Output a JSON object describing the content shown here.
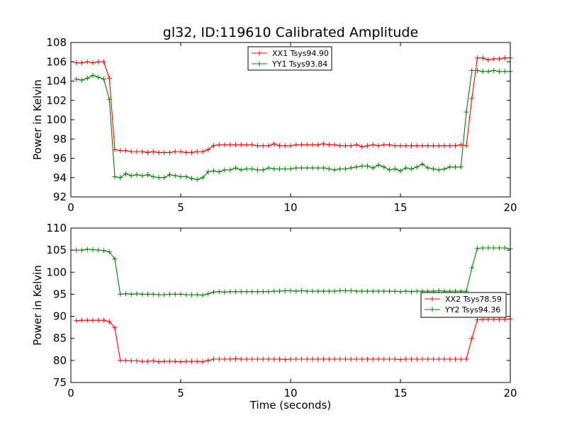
{
  "figure": {
    "title": "gl32, ID:119610 Calibrated Amplitude"
  },
  "chart_data": [
    {
      "type": "line",
      "xlabel": "",
      "ylabel": "Power in Kelvin",
      "xlim": [
        0,
        20
      ],
      "ylim": [
        92,
        108
      ],
      "xticks": [
        0,
        5,
        10,
        15,
        20
      ],
      "yticks": [
        92,
        94,
        96,
        98,
        100,
        102,
        104,
        106,
        108
      ],
      "grid": false,
      "legend_position": "top-center",
      "series": [
        {
          "name": "XX1 Tsys94.90",
          "color": "#ff0000",
          "x": [
            0.25,
            0.5,
            0.75,
            1.0,
            1.25,
            1.5,
            1.75,
            2.0,
            2.25,
            2.5,
            2.75,
            3.0,
            3.25,
            3.5,
            3.75,
            4.0,
            4.25,
            4.5,
            4.75,
            5.0,
            5.25,
            5.5,
            5.75,
            6.0,
            6.25,
            6.5,
            6.75,
            7.0,
            7.25,
            7.5,
            7.75,
            8.0,
            8.25,
            8.5,
            8.75,
            9.0,
            9.25,
            9.5,
            9.75,
            10.0,
            10.25,
            10.5,
            10.75,
            11.0,
            11.25,
            11.5,
            11.75,
            12.0,
            12.25,
            12.5,
            12.75,
            13.0,
            13.25,
            13.5,
            13.75,
            14.0,
            14.25,
            14.5,
            14.75,
            15.0,
            15.25,
            15.5,
            15.75,
            16.0,
            16.25,
            16.5,
            16.75,
            17.0,
            17.25,
            17.5,
            17.75,
            18.0,
            18.25,
            18.5,
            18.75,
            19.0,
            19.25,
            19.5,
            19.75,
            20.0
          ],
          "y": [
            105.9,
            105.9,
            106.0,
            105.9,
            106.0,
            106.0,
            104.3,
            96.9,
            96.8,
            96.8,
            96.7,
            96.7,
            96.7,
            96.6,
            96.7,
            96.6,
            96.6,
            96.6,
            96.7,
            96.7,
            96.6,
            96.6,
            96.7,
            96.7,
            96.9,
            97.3,
            97.4,
            97.4,
            97.4,
            97.4,
            97.4,
            97.4,
            97.4,
            97.3,
            97.3,
            97.3,
            97.5,
            97.3,
            97.3,
            97.3,
            97.4,
            97.4,
            97.4,
            97.4,
            97.4,
            97.5,
            97.4,
            97.4,
            97.3,
            97.3,
            97.3,
            97.4,
            97.2,
            97.3,
            97.4,
            97.3,
            97.4,
            97.4,
            97.3,
            97.3,
            97.3,
            97.3,
            97.3,
            97.3,
            97.3,
            97.3,
            97.3,
            97.3,
            97.3,
            97.3,
            97.4,
            97.3,
            102.2,
            106.4,
            106.4,
            106.2,
            106.3,
            106.3,
            106.4,
            106.4
          ]
        },
        {
          "name": "YY1 Tsys93.84",
          "color": "#008000",
          "x": [
            0.25,
            0.5,
            0.75,
            1.0,
            1.25,
            1.5,
            1.75,
            2.0,
            2.25,
            2.5,
            2.75,
            3.0,
            3.25,
            3.5,
            3.75,
            4.0,
            4.25,
            4.5,
            4.75,
            5.0,
            5.25,
            5.5,
            5.75,
            6.0,
            6.25,
            6.5,
            6.75,
            7.0,
            7.25,
            7.5,
            7.75,
            8.0,
            8.25,
            8.5,
            8.75,
            9.0,
            9.25,
            9.5,
            9.75,
            10.0,
            10.25,
            10.5,
            10.75,
            11.0,
            11.25,
            11.5,
            11.75,
            12.0,
            12.25,
            12.5,
            12.75,
            13.0,
            13.25,
            13.5,
            13.75,
            14.0,
            14.25,
            14.5,
            14.75,
            15.0,
            15.25,
            15.5,
            15.75,
            16.0,
            16.25,
            16.5,
            16.75,
            17.0,
            17.25,
            17.5,
            17.75,
            18.0,
            18.25,
            18.5,
            18.75,
            19.0,
            19.25,
            19.5,
            19.75,
            20.0
          ],
          "y": [
            104.2,
            104.1,
            104.3,
            104.6,
            104.4,
            104.2,
            102.1,
            94.1,
            94.0,
            94.4,
            94.2,
            94.3,
            94.2,
            94.3,
            94.1,
            94.0,
            94.0,
            94.3,
            94.2,
            94.1,
            94.1,
            93.9,
            93.8,
            94.0,
            94.6,
            94.7,
            94.6,
            94.8,
            94.8,
            95.0,
            94.8,
            94.9,
            94.9,
            94.8,
            94.8,
            95.0,
            94.9,
            94.9,
            94.9,
            94.9,
            95.0,
            95.0,
            95.0,
            95.0,
            95.0,
            95.0,
            94.9,
            94.8,
            94.9,
            94.9,
            95.0,
            95.1,
            95.2,
            95.2,
            95.0,
            95.3,
            95.1,
            94.8,
            94.9,
            94.7,
            95.0,
            94.9,
            95.1,
            95.4,
            95.0,
            94.9,
            94.8,
            94.9,
            95.1,
            95.1,
            95.1,
            100.8,
            105.1,
            105.1,
            105.0,
            105.0,
            105.1,
            105.0,
            105.0,
            105.0
          ]
        }
      ]
    },
    {
      "type": "line",
      "xlabel": "Time (seconds)",
      "ylabel": "Power in Kelvin",
      "xlim": [
        0,
        20
      ],
      "ylim": [
        75,
        110
      ],
      "xticks": [
        0,
        5,
        10,
        15,
        20
      ],
      "yticks": [
        75,
        80,
        85,
        90,
        95,
        100,
        105,
        110
      ],
      "grid": false,
      "legend_position": "center-right",
      "series": [
        {
          "name": "XX2 Tsys78.59",
          "color": "#ff0000",
          "x": [
            0.25,
            0.5,
            0.75,
            1.0,
            1.25,
            1.5,
            1.75,
            2.0,
            2.25,
            2.5,
            2.75,
            3.0,
            3.25,
            3.5,
            3.75,
            4.0,
            4.25,
            4.5,
            4.75,
            5.0,
            5.25,
            5.5,
            5.75,
            6.0,
            6.25,
            6.5,
            6.75,
            7.0,
            7.25,
            7.5,
            7.75,
            8.0,
            8.25,
            8.5,
            8.75,
            9.0,
            9.25,
            9.5,
            9.75,
            10.0,
            10.25,
            10.5,
            10.75,
            11.0,
            11.25,
            11.5,
            11.75,
            12.0,
            12.25,
            12.5,
            12.75,
            13.0,
            13.25,
            13.5,
            13.75,
            14.0,
            14.25,
            14.5,
            14.75,
            15.0,
            15.25,
            15.5,
            15.75,
            16.0,
            16.25,
            16.5,
            16.75,
            17.0,
            17.25,
            17.5,
            17.75,
            18.0,
            18.25,
            18.5,
            18.75,
            19.0,
            19.25,
            19.5,
            19.75,
            20.0
          ],
          "y": [
            89.0,
            89.1,
            89.1,
            89.1,
            89.1,
            89.1,
            88.8,
            87.4,
            80.0,
            80.0,
            79.9,
            79.9,
            79.8,
            79.8,
            79.9,
            79.7,
            79.8,
            79.8,
            79.8,
            79.7,
            79.8,
            79.8,
            79.8,
            79.7,
            80.0,
            80.3,
            80.3,
            80.3,
            80.3,
            80.4,
            80.3,
            80.3,
            80.3,
            80.3,
            80.3,
            80.3,
            80.3,
            80.3,
            80.2,
            80.3,
            80.3,
            80.3,
            80.3,
            80.3,
            80.3,
            80.3,
            80.3,
            80.3,
            80.3,
            80.3,
            80.3,
            80.3,
            80.3,
            80.3,
            80.3,
            80.3,
            80.3,
            80.3,
            80.3,
            80.2,
            80.3,
            80.3,
            80.3,
            80.3,
            80.3,
            80.3,
            80.3,
            80.3,
            80.3,
            80.3,
            80.3,
            80.3,
            85.0,
            89.2,
            89.3,
            89.3,
            89.3,
            89.3,
            89.3,
            89.4
          ]
        },
        {
          "name": "YY2 Tsys94.36",
          "color": "#008000",
          "x": [
            0.25,
            0.5,
            0.75,
            1.0,
            1.25,
            1.5,
            1.75,
            2.0,
            2.25,
            2.5,
            2.75,
            3.0,
            3.25,
            3.5,
            3.75,
            4.0,
            4.25,
            4.5,
            4.75,
            5.0,
            5.25,
            5.5,
            5.75,
            6.0,
            6.25,
            6.5,
            6.75,
            7.0,
            7.25,
            7.5,
            7.75,
            8.0,
            8.25,
            8.5,
            8.75,
            9.0,
            9.25,
            9.5,
            9.75,
            10.0,
            10.25,
            10.5,
            10.75,
            11.0,
            11.25,
            11.5,
            11.75,
            12.0,
            12.25,
            12.5,
            12.75,
            13.0,
            13.25,
            13.5,
            13.75,
            14.0,
            14.25,
            14.5,
            14.75,
            15.0,
            15.25,
            15.5,
            15.75,
            16.0,
            16.25,
            16.5,
            16.75,
            17.0,
            17.25,
            17.5,
            17.75,
            18.0,
            18.25,
            18.5,
            18.75,
            19.0,
            19.25,
            19.5,
            19.75,
            20.0
          ],
          "y": [
            105.0,
            105.0,
            105.2,
            105.1,
            105.0,
            104.9,
            104.6,
            103.0,
            95.0,
            95.1,
            95.0,
            95.1,
            95.0,
            95.0,
            95.0,
            94.9,
            94.9,
            95.0,
            95.0,
            95.0,
            94.9,
            94.9,
            94.9,
            94.8,
            95.1,
            95.5,
            95.6,
            95.5,
            95.6,
            95.6,
            95.6,
            95.6,
            95.6,
            95.6,
            95.6,
            95.6,
            95.7,
            95.7,
            95.8,
            95.8,
            95.7,
            95.8,
            95.7,
            95.7,
            95.7,
            95.7,
            95.7,
            95.7,
            95.8,
            95.8,
            95.8,
            95.7,
            95.7,
            95.7,
            95.7,
            95.7,
            95.7,
            95.7,
            95.7,
            95.6,
            95.7,
            95.6,
            95.7,
            95.7,
            95.7,
            95.7,
            95.8,
            95.7,
            95.7,
            95.7,
            95.7,
            95.7,
            101.0,
            105.4,
            105.5,
            105.5,
            105.5,
            105.5,
            105.5,
            105.3
          ]
        }
      ]
    }
  ]
}
